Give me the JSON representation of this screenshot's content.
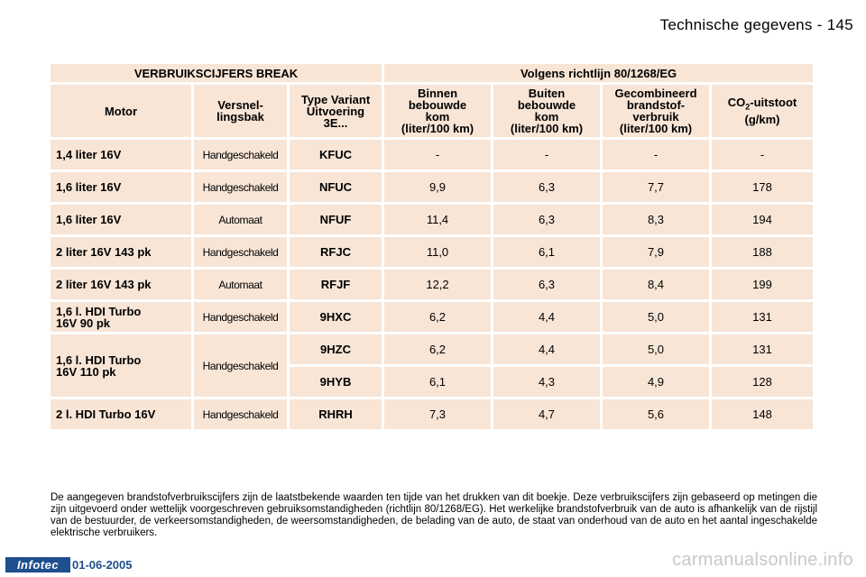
{
  "header": {
    "title": "Technische gegevens - 145"
  },
  "table": {
    "group_left": "VERBRUIKSCIJFERS BREAK",
    "group_right": "Volgens richtlijn 80/1268/EG",
    "columns": {
      "motor": "Motor",
      "gear_1": "Versnel-",
      "gear_2": "lingsbak",
      "type_1": "Type Variant",
      "type_2": "Uitvoering",
      "type_3": "3E...",
      "urban_1": "Binnen",
      "urban_2": "bebouwde",
      "urban_3": "kom",
      "urban_4": "(liter/100 km)",
      "extra_1": "Buiten",
      "extra_2": "bebouwde",
      "extra_3": "kom",
      "extra_4": "(liter/100 km)",
      "comb_1": "Gecombineerd",
      "comb_2": "brandstof-",
      "comb_3": "verbruik",
      "comb_4": "(liter/100 km)",
      "co2_pre": "CO",
      "co2_sub": "2",
      "co2_post": "-uitstoot",
      "co2_unit": "(g/km)"
    },
    "rows": [
      {
        "motor_1": "1,4 liter 16V",
        "motor_2": "",
        "gear": "Handgeschakeld",
        "type": "KFUC",
        "urban": "-",
        "extra": "-",
        "comb": "-",
        "co2": "-"
      },
      {
        "motor_1": "1,6 liter 16V",
        "motor_2": "",
        "gear": "Handgeschakeld",
        "type": "NFUC",
        "urban": "9,9",
        "extra": "6,3",
        "comb": "7,7",
        "co2": "178"
      },
      {
        "motor_1": "1,6 liter 16V",
        "motor_2": "",
        "gear": "Automaat",
        "type": "NFUF",
        "urban": "11,4",
        "extra": "6,3",
        "comb": "8,3",
        "co2": "194"
      },
      {
        "motor_1": "2 liter 16V 143 pk",
        "motor_2": "",
        "gear": "Handgeschakeld",
        "type": "RFJC",
        "urban": "11,0",
        "extra": "6,1",
        "comb": "7,9",
        "co2": "188"
      },
      {
        "motor_1": "2 liter 16V 143 pk",
        "motor_2": "",
        "gear": "Automaat",
        "type": "RFJF",
        "urban": "12,2",
        "extra": "6,3",
        "comb": "8,4",
        "co2": "199"
      },
      {
        "motor_1": "1,6 l. HDI Turbo",
        "motor_2": "16V 90 pk",
        "gear": "Handgeschakeld",
        "type": "9HXC",
        "urban": "6,2",
        "extra": "4,4",
        "comb": "5,0",
        "co2": "131"
      },
      {
        "motor_1": "1,6 l. HDI Turbo",
        "motor_2": "16V 110 pk",
        "gear": "Handgeschakeld",
        "type": "9HZC",
        "urban": "6,2",
        "extra": "4,4",
        "comb": "5,0",
        "co2": "131"
      },
      {
        "type": "9HYB",
        "urban": "6,1",
        "extra": "4,3",
        "comb": "4,9",
        "co2": "128"
      },
      {
        "motor_1": "2 l. HDI Turbo 16V",
        "motor_2": "",
        "gear": "Handgeschakeld",
        "type": "RHRH",
        "urban": "7,3",
        "extra": "4,7",
        "comb": "5,6",
        "co2": "148"
      }
    ]
  },
  "note": "De aangegeven brandstofverbruikscijfers zijn de laatstbekende waarden ten tijde van het drukken van dit boekje. Deze verbruikscijfers zijn gebaseerd op metingen die zijn uitgevoerd onder wettelijk voorgeschreven gebruiksomstandigheden (richtlijn 80/1268/EG). Het werkelijke brandstofverbruik van de auto is afhankelijk van de rijstijl van de bestuurder, de verkeersomstandigheden, de weersomstandigheden, de belading van de auto, de staat van onderhoud van de auto en het aantal ingeschakelde elektrische verbruikers.",
  "footer": {
    "logo": "Infotec",
    "date": "01-06-2005",
    "watermark": "carmanualsonline.info"
  }
}
